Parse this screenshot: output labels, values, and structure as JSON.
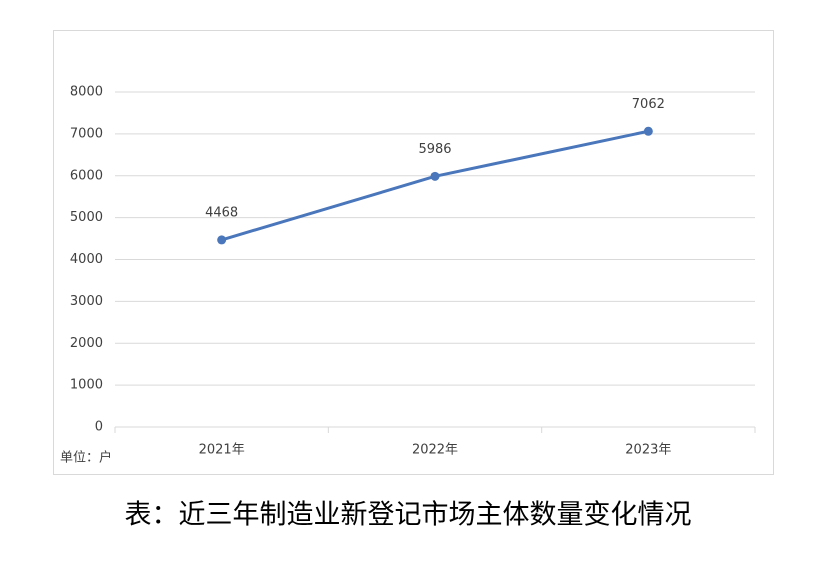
{
  "chart_data": {
    "type": "line",
    "categories": [
      "2021年",
      "2022年",
      "2023年"
    ],
    "series": [
      {
        "color": "#4a76bb",
        "values": [
          4468,
          5986,
          7062
        ]
      }
    ],
    "ylim": [
      0,
      8000
    ],
    "yticks": [
      0,
      1000,
      2000,
      3000,
      4000,
      5000,
      6000,
      7000,
      8000
    ],
    "grid": true,
    "data_labels": true,
    "unit_note": "单位：户",
    "caption": "表：近三年制造业新登记市场主体数量变化情况"
  }
}
